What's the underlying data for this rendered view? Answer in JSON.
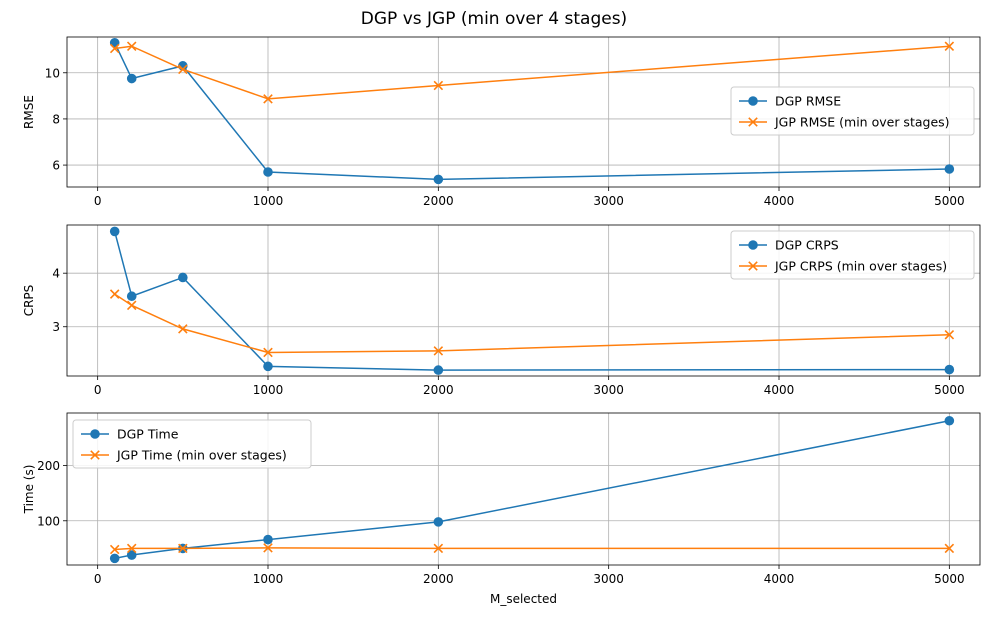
{
  "figure": {
    "title": "DGP vs JGP (min over 4 stages)"
  },
  "colors": {
    "dgp": "#1f77b4",
    "jgp": "#ff7f0e",
    "grid": "#b0b0b0",
    "legend_border": "#cccccc"
  },
  "chart_data": [
    {
      "type": "line",
      "ylabel": "RMSE",
      "xlabel": "",
      "xlim": [
        -180,
        5180
      ],
      "ylim": [
        5.05,
        11.55
      ],
      "xticks": [
        0,
        1000,
        2000,
        3000,
        4000,
        5000
      ],
      "yticks": [
        6,
        8,
        10
      ],
      "grid": true,
      "legend_position": "center-right",
      "x": [
        100,
        200,
        500,
        1000,
        2000,
        5000
      ],
      "series": [
        {
          "name": "DGP RMSE",
          "values": [
            11.3,
            9.75,
            10.3,
            5.7,
            5.38,
            5.83
          ],
          "marker": "circle",
          "color_key": "dgp"
        },
        {
          "name": "JGP RMSE (min over stages)",
          "values": [
            11.05,
            11.15,
            10.15,
            8.87,
            9.45,
            11.15
          ],
          "marker": "x",
          "color_key": "jgp"
        }
      ]
    },
    {
      "type": "line",
      "ylabel": "CRPS",
      "xlabel": "",
      "xlim": [
        -180,
        5180
      ],
      "ylim": [
        2.08,
        4.9
      ],
      "xticks": [
        0,
        1000,
        2000,
        3000,
        4000,
        5000
      ],
      "yticks": [
        3,
        4
      ],
      "grid": true,
      "legend_position": "top-right",
      "x": [
        100,
        200,
        500,
        1000,
        2000,
        5000
      ],
      "series": [
        {
          "name": "DGP CRPS",
          "values": [
            4.78,
            3.57,
            3.92,
            2.26,
            2.19,
            2.2
          ],
          "marker": "circle",
          "color_key": "dgp"
        },
        {
          "name": "JGP CRPS (min over stages)",
          "values": [
            3.61,
            3.4,
            2.96,
            2.52,
            2.55,
            2.85
          ],
          "marker": "x",
          "color_key": "jgp"
        }
      ]
    },
    {
      "type": "line",
      "ylabel": "Time (s)",
      "xlabel": "M_selected",
      "xlim": [
        -180,
        5180
      ],
      "ylim": [
        20,
        295
      ],
      "xticks": [
        0,
        1000,
        2000,
        3000,
        4000,
        5000
      ],
      "yticks": [
        100,
        200
      ],
      "grid": true,
      "legend_position": "top-left",
      "x": [
        100,
        200,
        500,
        1000,
        2000,
        5000
      ],
      "series": [
        {
          "name": "DGP Time",
          "values": [
            32,
            38,
            50,
            66,
            98,
            281
          ],
          "marker": "circle",
          "color_key": "dgp"
        },
        {
          "name": "JGP Time (min over stages)",
          "values": [
            48,
            50,
            50,
            51,
            50,
            50
          ],
          "marker": "x",
          "color_key": "jgp"
        }
      ]
    }
  ]
}
